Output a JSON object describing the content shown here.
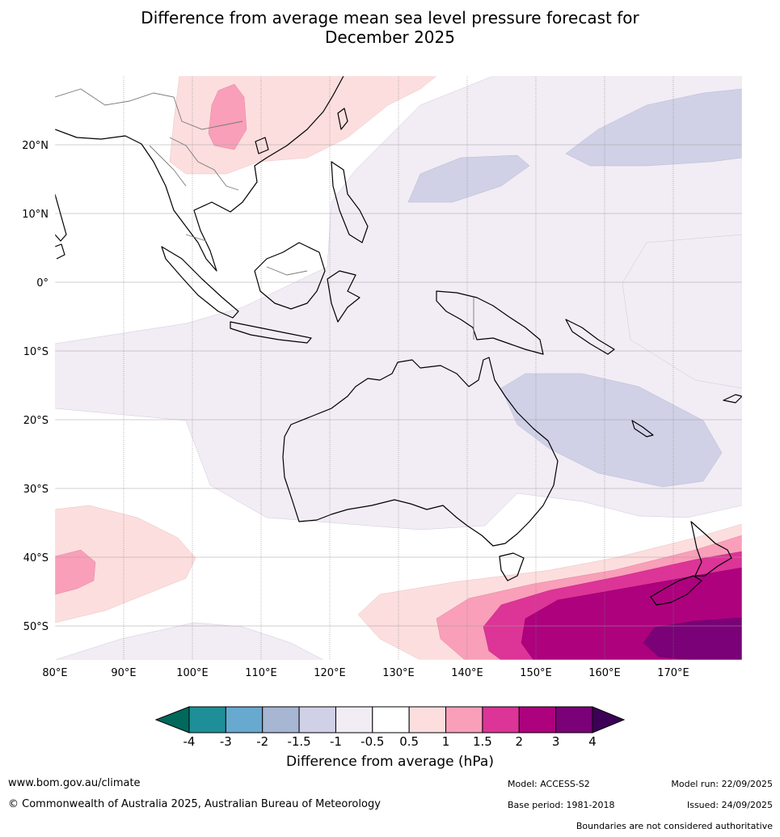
{
  "title_line1": "Difference from average mean sea level pressure forecast for",
  "title_line2": "December 2025",
  "lat_labels": [
    "20°N",
    "10°N",
    "0°",
    "10°S",
    "20°S",
    "30°S",
    "40°S",
    "50°S"
  ],
  "lon_labels": [
    "80°E",
    "90°E",
    "100°E",
    "110°E",
    "120°E",
    "130°E",
    "140°E",
    "150°E",
    "160°E",
    "170°E"
  ],
  "colorbar": {
    "title": "Difference from average (hPa)",
    "ticks": [
      "-4",
      "-3",
      "-2",
      "-1.5",
      "-1",
      "-0.5",
      "0.5",
      "1",
      "1.5",
      "2",
      "3",
      "4"
    ],
    "under_color": "#00695c",
    "over_color": "#3d0057",
    "colors": [
      "#1e8f98",
      "#67a9cf",
      "#a6b6d3",
      "#d0d1e6",
      "#f2ecf5",
      "#ffffff",
      "#fddede",
      "#f99fb9",
      "#dd3497",
      "#ae017e",
      "#7a0177"
    ]
  },
  "footer": {
    "url": "www.bom.gov.au/climate",
    "copyright": "© Commonwealth of Australia 2025, Australian Bureau of Meteorology",
    "model": "Model: ACCESS-S2",
    "base_period": "Base period: 1981-2018",
    "model_run": "Model run: 22/09/2025",
    "issued": "Issued: 24/09/2025",
    "disclaimer": "Boundaries are not considered authoritative"
  }
}
